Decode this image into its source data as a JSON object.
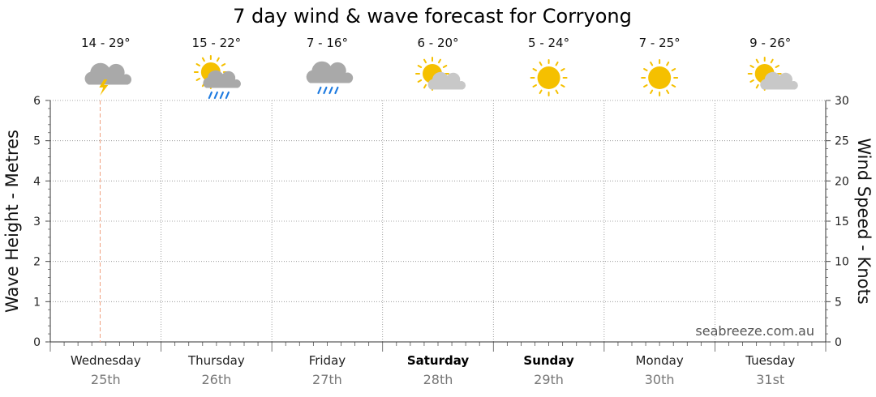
{
  "chart_data": {
    "type": "line",
    "title": "7 day wind & wave forecast for Corryong",
    "credit": "seabreeze.com.au",
    "left_axis": {
      "label": "Wave Height - Metres",
      "ylim": [
        0,
        6
      ],
      "ticks": [
        "0",
        "1",
        "2",
        "3",
        "4",
        "5",
        "6"
      ]
    },
    "right_axis": {
      "label": "Wind Speed - Knots",
      "ylim": [
        0,
        30
      ],
      "ticks": [
        "0",
        "5",
        "10",
        "15",
        "20",
        "25",
        "30"
      ]
    },
    "grid": true,
    "now_marker_day_index": 0.45,
    "days": [
      {
        "day": "Wednesday",
        "date": "25th",
        "temp": "14 - 29°",
        "icon": "thunderstorm-icon",
        "weekend": false
      },
      {
        "day": "Thursday",
        "date": "26th",
        "temp": "15 - 22°",
        "icon": "sun-cloud-rain-icon",
        "weekend": false
      },
      {
        "day": "Friday",
        "date": "27th",
        "temp": "7 - 16°",
        "icon": "cloud-rain-icon",
        "weekend": false
      },
      {
        "day": "Saturday",
        "date": "28th",
        "temp": "6 - 20°",
        "icon": "partly-sunny-icon",
        "weekend": true
      },
      {
        "day": "Sunday",
        "date": "29th",
        "temp": "5 - 24°",
        "icon": "sun-icon",
        "weekend": true
      },
      {
        "day": "Monday",
        "date": "30th",
        "temp": "7 - 25°",
        "icon": "sun-icon",
        "weekend": false
      },
      {
        "day": "Tuesday",
        "date": "31st",
        "temp": "9 - 26°",
        "icon": "partly-sunny-icon",
        "weekend": false
      }
    ],
    "series": []
  },
  "colors": {
    "sun": "#F5C000",
    "cloud": "#C8C8C8",
    "cloud_dark": "#A9A9A9",
    "rain": "#1E7BE0",
    "bolt": "#F5C000",
    "now_line": "#F0A080",
    "grid": "#8A8A8A"
  }
}
